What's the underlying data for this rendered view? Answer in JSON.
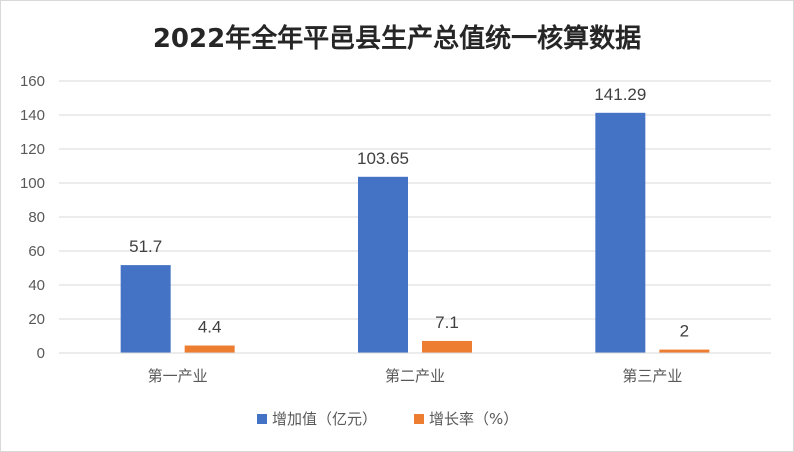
{
  "chart_data": {
    "type": "bar",
    "title": "2022年全年平邑县生产总值统一核算数据",
    "categories": [
      "第一产业",
      "第二产业",
      "第三产业"
    ],
    "series": [
      {
        "name": "增加值（亿元）",
        "values": [
          51.7,
          103.65,
          141.29
        ],
        "color": "#4472c4"
      },
      {
        "name": "增长率（%）",
        "values": [
          4.4,
          7.1,
          2
        ],
        "color": "#ed7d31"
      }
    ],
    "data_labels": [
      [
        "51.7",
        "103.65",
        "141.29"
      ],
      [
        "4.4",
        "7.1",
        "2"
      ]
    ],
    "ylim": [
      0,
      160
    ],
    "yticks": [
      0,
      20,
      40,
      60,
      80,
      100,
      120,
      140,
      160
    ],
    "xlabel": "",
    "ylabel": "",
    "grid": true,
    "legend": "bottom"
  }
}
